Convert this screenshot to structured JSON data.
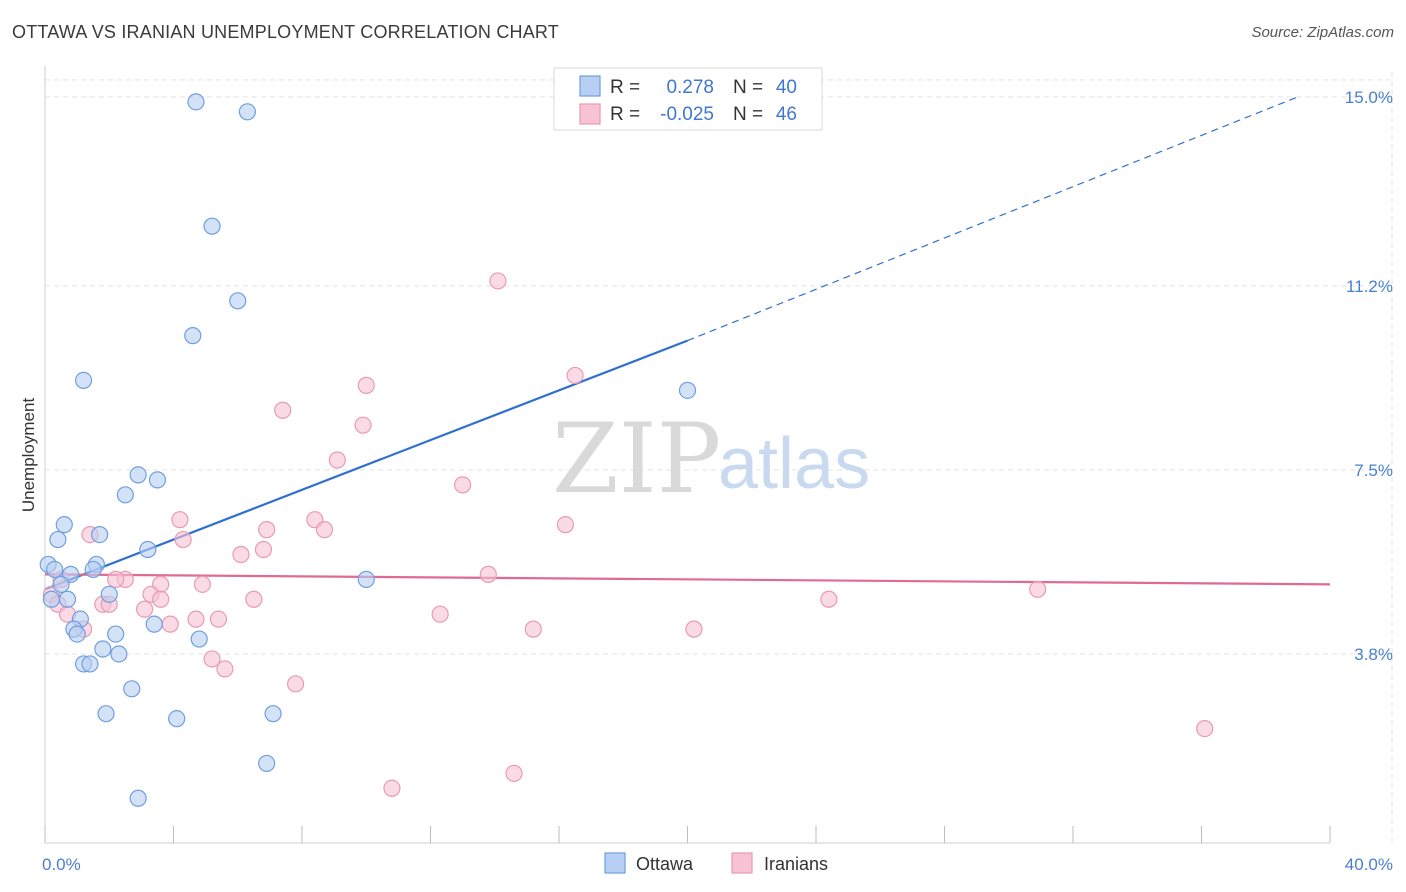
{
  "title": "OTTAWA VS IRANIAN UNEMPLOYMENT CORRELATION CHART",
  "source": "Source: ZipAtlas.com",
  "watermark": {
    "zip": "ZIP",
    "atlas": "atlas"
  },
  "colors": {
    "ottawa_fill": "#b7cff2",
    "ottawa_stroke": "#6f9fe0",
    "ottawa_line": "#2f6fce",
    "iranians_fill": "#f7c3d4",
    "iranians_stroke": "#e99ab5",
    "iranians_line": "#e06a96",
    "tick_text": "#4a7fd0",
    "grid": "#e3e3e3"
  },
  "stats": {
    "r_label": "R =",
    "n_label": "N =",
    "ottawa": {
      "r": "0.278",
      "n": "40"
    },
    "iranians": {
      "r": "-0.025",
      "n": "46"
    }
  },
  "chart_data": {
    "type": "scatter",
    "title": "OTTAWA VS IRANIAN UNEMPLOYMENT CORRELATION CHART",
    "xlabel": "",
    "ylabel": "Unemployment",
    "xlim": [
      0,
      40
    ],
    "ylim": [
      0,
      15.5
    ],
    "x_tick_labels": [
      {
        "value": 0,
        "label": "0.0%"
      },
      {
        "value": 40,
        "label": "40.0%"
      }
    ],
    "x_minor_ticks": [
      0,
      4,
      8,
      12,
      16,
      20,
      24,
      28,
      32,
      36,
      40
    ],
    "y_ticks": [
      {
        "value": 3.8,
        "label": "3.8%"
      },
      {
        "value": 7.5,
        "label": "7.5%"
      },
      {
        "value": 11.2,
        "label": "11.2%"
      },
      {
        "value": 15.0,
        "label": "15.0%"
      }
    ],
    "grid": true,
    "legend_position": "bottom-center",
    "series": [
      {
        "name": "Ottawa",
        "points": [
          [
            4.7,
            14.9
          ],
          [
            6.3,
            14.7
          ],
          [
            5.2,
            12.4
          ],
          [
            6.0,
            10.9
          ],
          [
            4.6,
            10.2
          ],
          [
            1.2,
            9.3
          ],
          [
            20.0,
            9.1
          ],
          [
            2.9,
            7.4
          ],
          [
            3.5,
            7.3
          ],
          [
            2.5,
            7.0
          ],
          [
            0.6,
            6.4
          ],
          [
            1.7,
            6.2
          ],
          [
            0.4,
            6.1
          ],
          [
            3.2,
            5.9
          ],
          [
            0.1,
            5.6
          ],
          [
            1.6,
            5.6
          ],
          [
            1.5,
            5.5
          ],
          [
            0.3,
            5.5
          ],
          [
            0.8,
            5.4
          ],
          [
            0.5,
            5.2
          ],
          [
            10.0,
            5.3
          ],
          [
            2.0,
            5.0
          ],
          [
            0.2,
            4.9
          ],
          [
            0.7,
            4.9
          ],
          [
            1.1,
            4.5
          ],
          [
            3.4,
            4.4
          ],
          [
            0.9,
            4.3
          ],
          [
            1.0,
            4.2
          ],
          [
            2.2,
            4.2
          ],
          [
            4.8,
            4.1
          ],
          [
            1.8,
            3.9
          ],
          [
            2.3,
            3.8
          ],
          [
            1.2,
            3.6
          ],
          [
            1.4,
            3.6
          ],
          [
            2.7,
            3.1
          ],
          [
            1.9,
            2.6
          ],
          [
            4.1,
            2.5
          ],
          [
            7.1,
            2.6
          ],
          [
            6.9,
            1.6
          ],
          [
            2.9,
            0.9
          ]
        ]
      },
      {
        "name": "Iranians",
        "points": [
          [
            14.1,
            11.3
          ],
          [
            16.5,
            9.4
          ],
          [
            10.0,
            9.2
          ],
          [
            7.4,
            8.7
          ],
          [
            9.9,
            8.4
          ],
          [
            9.1,
            7.7
          ],
          [
            13.0,
            7.2
          ],
          [
            16.2,
            6.4
          ],
          [
            8.4,
            6.5
          ],
          [
            4.2,
            6.5
          ],
          [
            6.9,
            6.3
          ],
          [
            8.7,
            6.3
          ],
          [
            1.4,
            6.2
          ],
          [
            4.3,
            6.1
          ],
          [
            6.1,
            5.8
          ],
          [
            6.8,
            5.9
          ],
          [
            13.8,
            5.4
          ],
          [
            2.5,
            5.3
          ],
          [
            2.2,
            5.3
          ],
          [
            3.6,
            5.2
          ],
          [
            4.9,
            5.2
          ],
          [
            0.5,
            5.3
          ],
          [
            30.9,
            5.1
          ],
          [
            3.3,
            5.0
          ],
          [
            0.2,
            5.0
          ],
          [
            3.6,
            4.9
          ],
          [
            6.5,
            4.9
          ],
          [
            24.4,
            4.9
          ],
          [
            0.4,
            4.8
          ],
          [
            1.8,
            4.8
          ],
          [
            2.0,
            4.8
          ],
          [
            3.1,
            4.7
          ],
          [
            12.3,
            4.6
          ],
          [
            0.7,
            4.6
          ],
          [
            4.7,
            4.5
          ],
          [
            5.4,
            4.5
          ],
          [
            3.9,
            4.4
          ],
          [
            1.2,
            4.3
          ],
          [
            15.2,
            4.3
          ],
          [
            20.2,
            4.3
          ],
          [
            5.2,
            3.7
          ],
          [
            5.6,
            3.5
          ],
          [
            7.8,
            3.2
          ],
          [
            36.1,
            2.3
          ],
          [
            14.6,
            1.4
          ],
          [
            10.8,
            1.1
          ]
        ]
      }
    ],
    "trend_lines": [
      {
        "name": "Ottawa",
        "x1": 0,
        "y1": 5.1,
        "x2": 20.0,
        "y2": 10.1,
        "dashed_to": [
          39.0,
          15.0
        ]
      },
      {
        "name": "Iranians",
        "x1": 0,
        "y1": 5.4,
        "x2": 40.0,
        "y2": 5.2
      }
    ]
  }
}
